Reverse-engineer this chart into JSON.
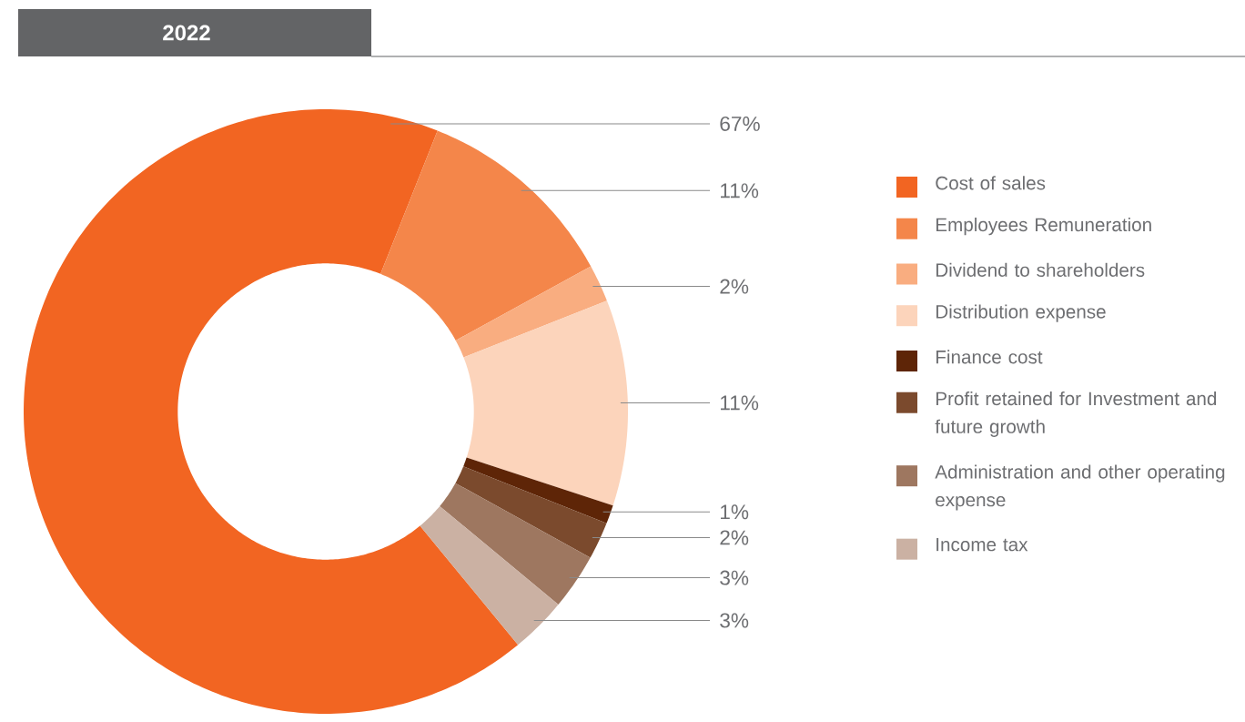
{
  "chart_data": {
    "type": "donut",
    "title": "2022",
    "categories": [
      "Cost of sales",
      "Employees Remuneration",
      "Dividend to shareholders",
      "Distribution expense",
      "Finance cost",
      "Profit retained for Investment and future growth",
      "Administration and other operating expense",
      "Income tax"
    ],
    "values": [
      67,
      11,
      2,
      11,
      1,
      2,
      3,
      3
    ],
    "value_labels": [
      "67%",
      "11%",
      "2%",
      "11%",
      "1%",
      "2%",
      "3%",
      "3%"
    ],
    "colors": [
      "#f26522",
      "#f4864a",
      "#f9ad80",
      "#fcd4bb",
      "#5e2507",
      "#7b4a2d",
      "#9e7760",
      "#cbb1a3"
    ],
    "legend": "right"
  }
}
